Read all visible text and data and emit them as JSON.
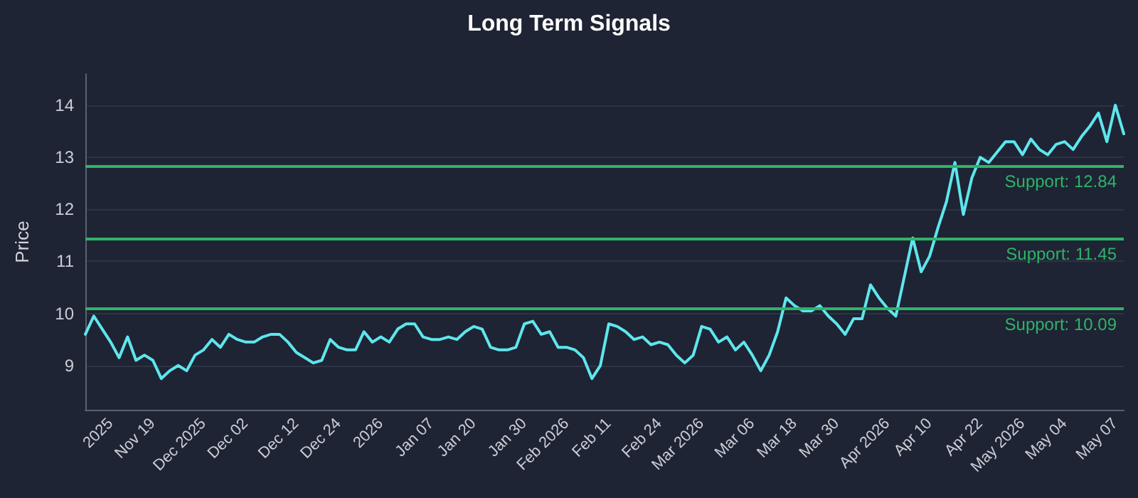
{
  "chart_data": {
    "type": "line",
    "title": "Long Term Signals",
    "ylabel": "Price",
    "categories": [
      null,
      null,
      null,
      "2025",
      null,
      null,
      null,
      null,
      "Nov 19",
      null,
      null,
      null,
      null,
      null,
      "Dec 2025",
      null,
      null,
      null,
      null,
      "Dec 02",
      null,
      null,
      null,
      null,
      null,
      "Dec 12",
      null,
      null,
      null,
      null,
      "Dec 24",
      null,
      null,
      null,
      null,
      "2026",
      null,
      null,
      null,
      null,
      null,
      "Jan 07",
      null,
      null,
      null,
      null,
      "Jan 20",
      null,
      null,
      null,
      null,
      null,
      "Jan 30",
      null,
      null,
      null,
      null,
      "Feb 2026",
      null,
      null,
      null,
      null,
      "Feb 11",
      null,
      null,
      null,
      null,
      null,
      "Feb 24",
      null,
      null,
      null,
      null,
      "Mar 2026",
      null,
      null,
      null,
      null,
      null,
      "Mar 06",
      null,
      null,
      null,
      null,
      "Mar 18",
      null,
      null,
      null,
      null,
      "Mar 30",
      null,
      null,
      null,
      null,
      null,
      "Apr 2026",
      null,
      null,
      null,
      null,
      "Apr 10",
      null,
      null,
      null,
      null,
      null,
      "Apr 22",
      null,
      null,
      null,
      null,
      "May 2026",
      null,
      null,
      null,
      null,
      "May 04",
      null,
      null,
      null,
      null,
      null,
      "May 07",
      null
    ],
    "series": [
      {
        "color": "#5ee6ee",
        "values": [
          9.6,
          9.95,
          9.7,
          9.45,
          9.15,
          9.55,
          9.1,
          9.2,
          9.1,
          8.75,
          8.9,
          9.0,
          8.9,
          9.2,
          9.3,
          9.5,
          9.35,
          9.6,
          9.5,
          9.45,
          9.45,
          9.55,
          9.6,
          9.6,
          9.45,
          9.25,
          9.15,
          9.05,
          9.1,
          9.5,
          9.35,
          9.3,
          9.3,
          9.65,
          9.45,
          9.55,
          9.45,
          9.7,
          9.8,
          9.8,
          9.55,
          9.5,
          9.5,
          9.55,
          9.5,
          9.65,
          9.75,
          9.7,
          9.35,
          9.3,
          9.3,
          9.35,
          9.8,
          9.85,
          9.6,
          9.65,
          9.35,
          9.35,
          9.3,
          9.15,
          8.75,
          9.0,
          9.8,
          9.75,
          9.65,
          9.5,
          9.55,
          9.4,
          9.45,
          9.4,
          9.2,
          9.05,
          9.2,
          9.75,
          9.7,
          9.45,
          9.55,
          9.3,
          9.45,
          9.2,
          8.9,
          9.2,
          9.65,
          10.3,
          10.15,
          10.05,
          10.05,
          10.15,
          9.95,
          9.8,
          9.6,
          9.9,
          9.9,
          10.55,
          10.3,
          10.1,
          9.95,
          10.7,
          11.45,
          10.8,
          11.1,
          11.65,
          12.15,
          12.9,
          11.9,
          12.6,
          13.0,
          12.9,
          13.1,
          13.3,
          13.3,
          13.05,
          13.35,
          13.15,
          13.05,
          13.25,
          13.3,
          13.15,
          13.4,
          13.6,
          13.85,
          13.3,
          14.0,
          13.45
        ]
      }
    ],
    "ylim": [
      8.15,
      14.6
    ],
    "yticks": [
      9,
      10,
      11,
      12,
      13,
      14
    ],
    "grid": "y",
    "marker": "none",
    "line_style": "solid",
    "ref_lines": [
      {
        "axis": "y",
        "value": 12.84,
        "label": "Support: 12.84",
        "color": "#2fb36a"
      },
      {
        "axis": "y",
        "value": 11.45,
        "label": "Support: 11.45",
        "color": "#2fb36a"
      },
      {
        "axis": "y",
        "value": 10.09,
        "label": "Support: 10.09",
        "color": "#2fb36a"
      }
    ]
  }
}
